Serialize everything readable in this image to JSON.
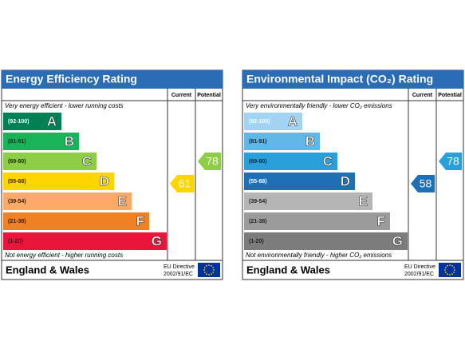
{
  "panels": [
    {
      "title": "Energy Efficiency Rating",
      "columns": [
        "Current",
        "Potential"
      ],
      "top_note": "Very energy efficient - lower running costs",
      "bottom_note": "Not energy efficient - higher running costs",
      "bands": [
        {
          "range": "(92-100)",
          "letter": "A",
          "color": "#008054"
        },
        {
          "range": "(81-91)",
          "letter": "B",
          "color": "#19b459"
        },
        {
          "range": "(69-80)",
          "letter": "C",
          "color": "#8dce46"
        },
        {
          "range": "(55-68)",
          "letter": "D",
          "color": "#ffd500"
        },
        {
          "range": "(39-54)",
          "letter": "E",
          "color": "#fcaa65"
        },
        {
          "range": "(21-38)",
          "letter": "F",
          "color": "#ef8023"
        },
        {
          "range": "(1-20)",
          "letter": "G",
          "color": "#e9153b"
        }
      ],
      "current": 61,
      "potential": 78,
      "footer": "England & Wales",
      "directive": [
        "EU Directive",
        "2002/91/EC"
      ]
    },
    {
      "title": "Environmental Impact (CO₂) Rating",
      "columns": [
        "Current",
        "Potential"
      ],
      "top_note": "Very environmentally friendly - lower CO₂ emissions",
      "bottom_note": "Not environmentally friendly - higher CO₂ emissions",
      "bands": [
        {
          "range": "(92-100)",
          "letter": "A",
          "color": "#a3d3f2"
        },
        {
          "range": "(81-91)",
          "letter": "B",
          "color": "#5fb8e6"
        },
        {
          "range": "(69-80)",
          "letter": "C",
          "color": "#29a0d9"
        },
        {
          "range": "(55-68)",
          "letter": "D",
          "color": "#1e6fb5"
        },
        {
          "range": "(39-54)",
          "letter": "E",
          "color": "#b5b5b5"
        },
        {
          "range": "(21-38)",
          "letter": "F",
          "color": "#9b9b9b"
        },
        {
          "range": "(1-20)",
          "letter": "G",
          "color": "#7c7c7c"
        }
      ],
      "current": 58,
      "potential": 78,
      "footer": "England & Wales",
      "directive": [
        "EU Directive",
        "2002/91/EC"
      ]
    }
  ]
}
